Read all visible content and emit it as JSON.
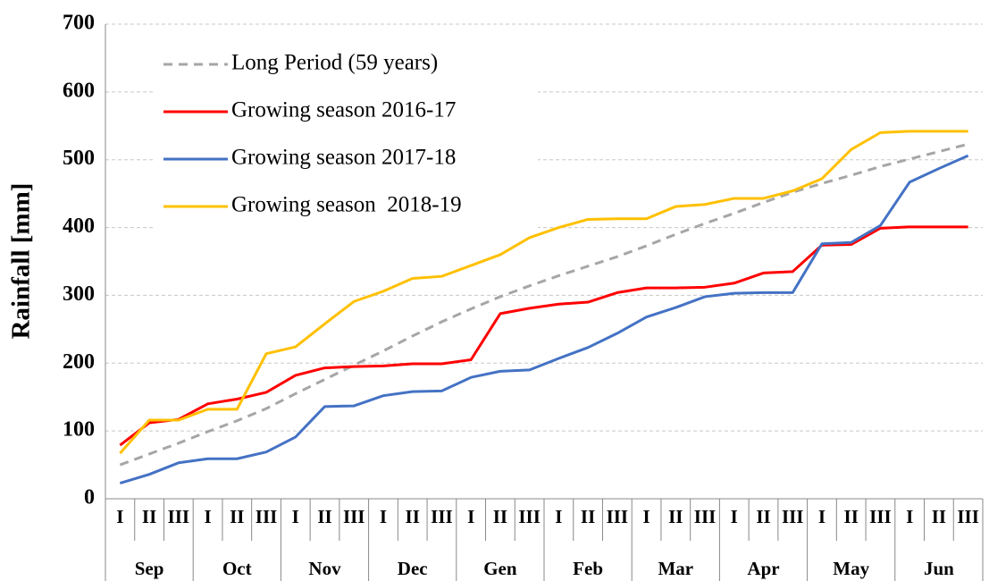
{
  "chart_data": {
    "type": "line",
    "y_label": "Rainfall [mm]",
    "categories": [
      "I",
      "II",
      "III",
      "I",
      "II",
      "III",
      "I",
      "II",
      "III",
      "I",
      "II",
      "III",
      "I",
      "II",
      "III",
      "I",
      "II",
      "III",
      "I",
      "II",
      "III",
      "I",
      "II",
      "III",
      "I",
      "II",
      "III",
      "I",
      "II",
      "III"
    ],
    "x_groups": [
      "Sep",
      "Oct",
      "Nov",
      "Dec",
      "Gen",
      "Feb",
      "Mar",
      "Apr",
      "May",
      "Jun"
    ],
    "series": [
      {
        "name": "Long Period (59 years)",
        "color": "#a6a6a6",
        "dashed": true,
        "values": [
          50,
          66,
          82,
          99,
          115,
          133,
          155,
          176,
          197,
          218,
          240,
          261,
          280,
          298,
          314,
          329,
          343,
          357,
          373,
          390,
          406,
          421,
          437,
          452,
          465,
          477,
          490,
          501,
          512,
          523
        ]
      },
      {
        "name": "Growing season 2016-17",
        "color": "#ff0000",
        "values": [
          79,
          112,
          117,
          140,
          147,
          157,
          182,
          193,
          195,
          196,
          199,
          199,
          205,
          273,
          281,
          287,
          290,
          304,
          311,
          311,
          312,
          318,
          333,
          335,
          374,
          375,
          399,
          401,
          401,
          401
        ]
      },
      {
        "name": "Growing season 2017-18",
        "color": "#4472c4",
        "values": [
          23,
          36,
          53,
          59,
          59,
          69,
          91,
          136,
          137,
          152,
          158,
          159,
          179,
          188,
          190,
          207,
          223,
          244,
          268,
          282,
          298,
          303,
          304,
          304,
          376,
          378,
          403,
          467,
          487,
          506
        ]
      },
      {
        "name": "Growing season  2018-19",
        "color": "#ffc000",
        "values": [
          67,
          116,
          116,
          132,
          132,
          214,
          224,
          258,
          291,
          306,
          325,
          328,
          344,
          360,
          385,
          400,
          412,
          413,
          413,
          431,
          434,
          443,
          443,
          454,
          472,
          515,
          540,
          542,
          542,
          542
        ]
      }
    ],
    "ylim": [
      0,
      700
    ],
    "yticks": [
      0,
      100,
      200,
      300,
      400,
      500,
      600,
      700
    ],
    "grid": true,
    "legend": "upper-left"
  }
}
